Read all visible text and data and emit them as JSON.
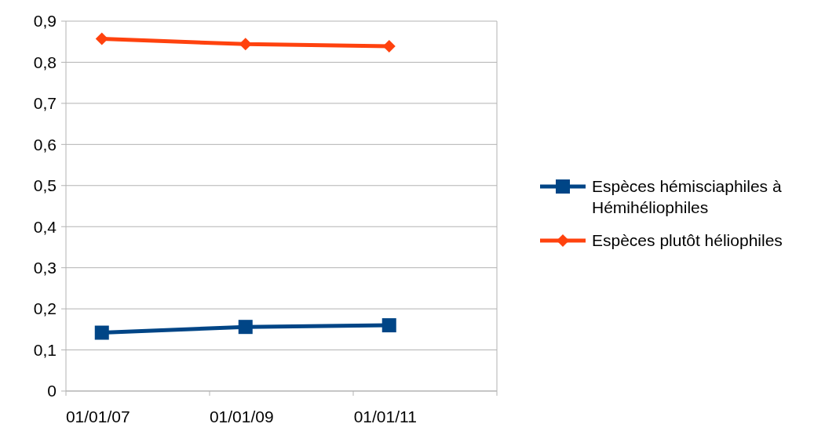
{
  "chart_data": {
    "type": "line",
    "categories": [
      "01/01/07",
      "01/01/09",
      "01/01/11"
    ],
    "series": [
      {
        "name": "Espèces hémisciaphiles à Hémihéliophiles",
        "color": "#004586",
        "marker": "square",
        "values": [
          0.142,
          0.156,
          0.16
        ]
      },
      {
        "name": "Espèces plutôt héliophiles",
        "color": "#ff420e",
        "marker": "diamond",
        "values": [
          0.857,
          0.844,
          0.839
        ]
      }
    ],
    "ylim": [
      0,
      0.9
    ],
    "yticks": [
      {
        "value": 0,
        "label": "0"
      },
      {
        "value": 0.1,
        "label": "0,1"
      },
      {
        "value": 0.2,
        "label": "0,2"
      },
      {
        "value": 0.3,
        "label": "0,3"
      },
      {
        "value": 0.4,
        "label": "0,4"
      },
      {
        "value": 0.5,
        "label": "0,5"
      },
      {
        "value": 0.6,
        "label": "0,6"
      },
      {
        "value": 0.7,
        "label": "0,7"
      },
      {
        "value": 0.8,
        "label": "0,8"
      },
      {
        "value": 0.9,
        "label": "0,9"
      }
    ],
    "grid": "y",
    "legend": "right",
    "line_style": "solid"
  }
}
